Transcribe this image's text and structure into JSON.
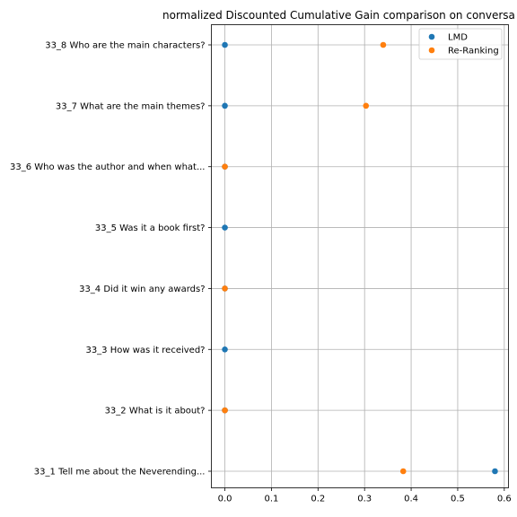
{
  "chart_data": {
    "type": "scatter",
    "title": "normalized Discounted Cumulative Gain comparison on conversa",
    "xlabel": "",
    "ylabel": "",
    "xlim": [
      -0.029,
      0.609
    ],
    "xticks": [
      0.0,
      0.1,
      0.2,
      0.3,
      0.4,
      0.5,
      0.6
    ],
    "xtick_labels": [
      "0.0",
      "0.1",
      "0.2",
      "0.3",
      "0.4",
      "0.5",
      "0.6"
    ],
    "grid": true,
    "legend_position": "top-right",
    "categories": [
      "33_1 Tell me about the Neverending...",
      "33_2 What is it about?",
      "33_3 How was it received?",
      "33_4 Did it win any awards?",
      "33_5 Was it a book first?",
      "33_6 Who was the author and when what...",
      "33_7 What are the main themes?",
      "33_8 Who are the main characters?"
    ],
    "series": [
      {
        "name": "LMD",
        "color": "#1f77b4",
        "values": [
          0.58,
          0.0,
          0.0,
          0.0,
          0.0,
          0.0,
          0.0,
          0.0
        ]
      },
      {
        "name": "Re-Ranking",
        "color": "#ff7f0e",
        "values": [
          0.383,
          0.0,
          null,
          0.0,
          null,
          0.0,
          0.303,
          0.34
        ]
      }
    ]
  }
}
